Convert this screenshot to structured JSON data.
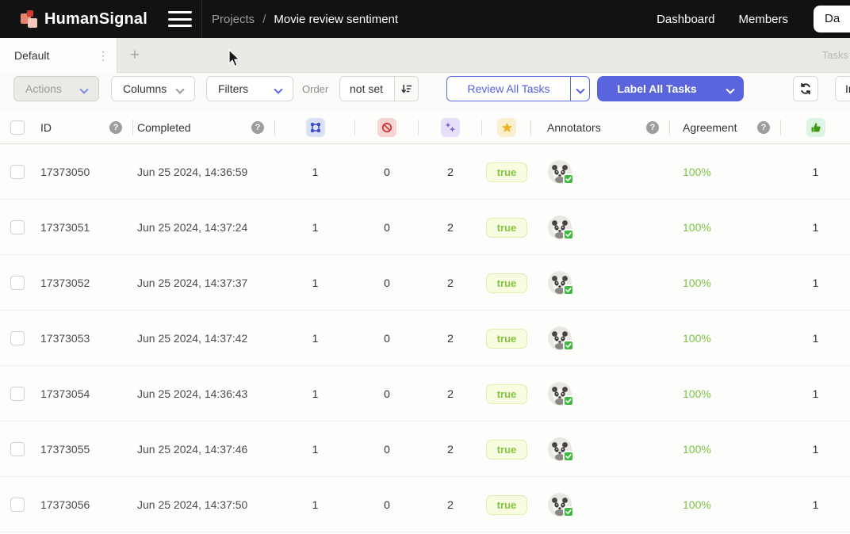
{
  "topbar": {
    "brand": "HumanSignal",
    "breadcrumb": {
      "section": "Projects",
      "separator": "/",
      "current": "Movie review sentiment"
    },
    "nav": {
      "dashboard": "Dashboard",
      "members": "Members",
      "cut_pill": "Da"
    }
  },
  "tabbar": {
    "active_tab": "Default",
    "tab_menu_glyph": "⋮",
    "add_tab_glyph": "+",
    "right_label": "Tasks"
  },
  "toolbar": {
    "actions_label": "Actions",
    "columns_label": "Columns",
    "filters_label": "Filters",
    "order_label": "Order",
    "order_value": "not set",
    "review_all_label": "Review All Tasks",
    "label_all_label": "Label All Tasks",
    "import_label": "Im"
  },
  "table": {
    "headers": {
      "id": "ID",
      "completed": "Completed",
      "annotators": "Annotators",
      "agreement": "Agreement",
      "help_glyph": "?"
    },
    "icon_columns": [
      "annotations-count",
      "cancelled-annotations",
      "predictions",
      "ground-truth",
      "reviews-accepted"
    ],
    "rows": [
      {
        "id": "17373050",
        "completed": "Jun 25 2024, 14:36:59",
        "annotations": "1",
        "cancelled": "0",
        "predictions": "2",
        "ground_truth": "true",
        "agreement": "100%",
        "reviews": "1"
      },
      {
        "id": "17373051",
        "completed": "Jun 25 2024, 14:37:24",
        "annotations": "1",
        "cancelled": "0",
        "predictions": "2",
        "ground_truth": "true",
        "agreement": "100%",
        "reviews": "1"
      },
      {
        "id": "17373052",
        "completed": "Jun 25 2024, 14:37:37",
        "annotations": "1",
        "cancelled": "0",
        "predictions": "2",
        "ground_truth": "true",
        "agreement": "100%",
        "reviews": "1"
      },
      {
        "id": "17373053",
        "completed": "Jun 25 2024, 14:37:42",
        "annotations": "1",
        "cancelled": "0",
        "predictions": "2",
        "ground_truth": "true",
        "agreement": "100%",
        "reviews": "1"
      },
      {
        "id": "17373054",
        "completed": "Jun 25 2024, 14:36:43",
        "annotations": "1",
        "cancelled": "0",
        "predictions": "2",
        "ground_truth": "true",
        "agreement": "100%",
        "reviews": "1"
      },
      {
        "id": "17373055",
        "completed": "Jun 25 2024, 14:37:46",
        "annotations": "1",
        "cancelled": "0",
        "predictions": "2",
        "ground_truth": "true",
        "agreement": "100%",
        "reviews": "1"
      },
      {
        "id": "17373056",
        "completed": "Jun 25 2024, 14:37:50",
        "annotations": "1",
        "cancelled": "0",
        "predictions": "2",
        "ground_truth": "true",
        "agreement": "100%",
        "reviews": "1"
      }
    ]
  },
  "colors": {
    "topbar_bg": "#121212",
    "accent_blue": "#5c6be8",
    "label_button_bg": "#5964dd",
    "green_text": "#7cc243",
    "true_badge_bg": "#f8fce1",
    "true_badge_border": "#dcedae",
    "true_badge_text": "#84c43c",
    "chip_blue": "#dbe1f6",
    "chip_red": "#f7d4d4",
    "chip_purple": "#e6dff7",
    "chip_yellow": "#faf0cd",
    "chip_green": "#ddf4e4",
    "check_badge_green": "#3fb93f"
  }
}
